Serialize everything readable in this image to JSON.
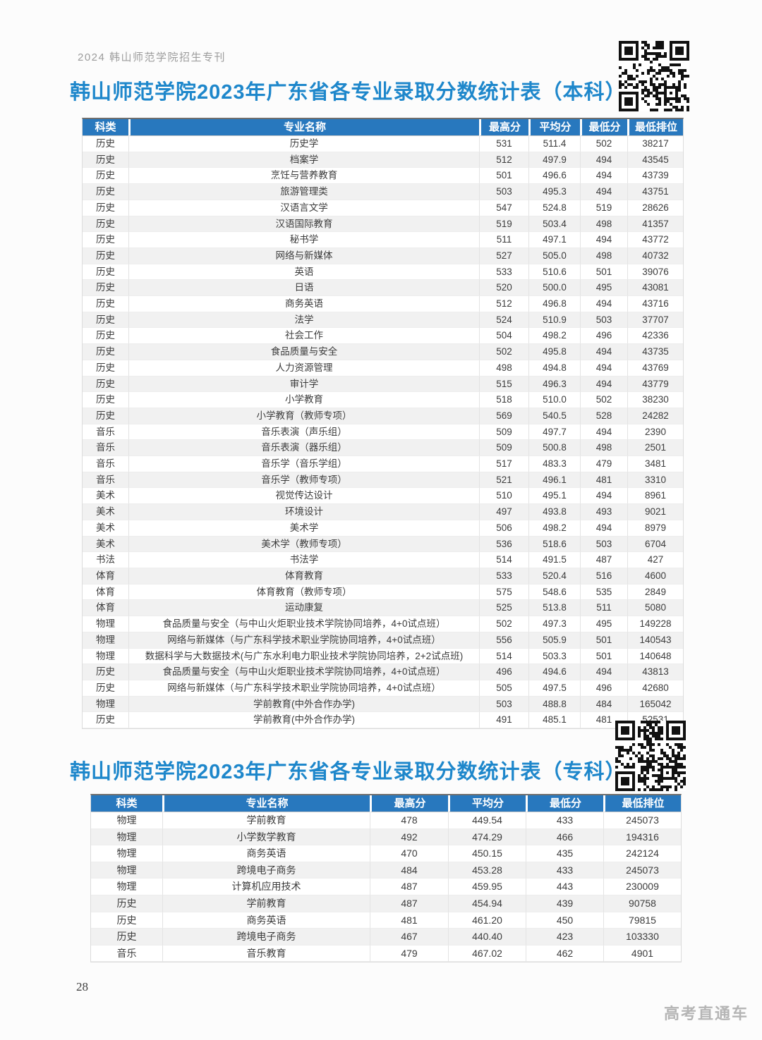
{
  "page": {
    "masthead": "2024 韩山师范学院招生专刊",
    "page_number": "28",
    "watermark": "高考直通车"
  },
  "colors": {
    "title_blue": "#1e87cb",
    "table_header_blue": "#2878be"
  },
  "tables": [
    {
      "title": "韩山师范学院2023年广东省各专业录取分数统计表（本科）",
      "columns": [
        "科类",
        "专业名称",
        "最高分",
        "平均分",
        "最低分",
        "最低排位"
      ],
      "rows": [
        [
          "历史",
          "历史学",
          "531",
          "511.4",
          "502",
          "38217"
        ],
        [
          "历史",
          "档案学",
          "512",
          "497.9",
          "494",
          "43545"
        ],
        [
          "历史",
          "烹饪与营养教育",
          "501",
          "496.6",
          "494",
          "43739"
        ],
        [
          "历史",
          "旅游管理类",
          "503",
          "495.3",
          "494",
          "43751"
        ],
        [
          "历史",
          "汉语言文学",
          "547",
          "524.8",
          "519",
          "28626"
        ],
        [
          "历史",
          "汉语国际教育",
          "519",
          "503.4",
          "498",
          "41357"
        ],
        [
          "历史",
          "秘书学",
          "511",
          "497.1",
          "494",
          "43772"
        ],
        [
          "历史",
          "网络与新媒体",
          "527",
          "505.0",
          "498",
          "40732"
        ],
        [
          "历史",
          "英语",
          "533",
          "510.6",
          "501",
          "39076"
        ],
        [
          "历史",
          "日语",
          "520",
          "500.0",
          "495",
          "43081"
        ],
        [
          "历史",
          "商务英语",
          "512",
          "496.8",
          "494",
          "43716"
        ],
        [
          "历史",
          "法学",
          "524",
          "510.9",
          "503",
          "37707"
        ],
        [
          "历史",
          "社会工作",
          "504",
          "498.2",
          "496",
          "42336"
        ],
        [
          "历史",
          "食品质量与安全",
          "502",
          "495.8",
          "494",
          "43735"
        ],
        [
          "历史",
          "人力资源管理",
          "498",
          "494.8",
          "494",
          "43769"
        ],
        [
          "历史",
          "审计学",
          "515",
          "496.3",
          "494",
          "43779"
        ],
        [
          "历史",
          "小学教育",
          "518",
          "510.0",
          "502",
          "38230"
        ],
        [
          "历史",
          "小学教育（教师专项）",
          "569",
          "540.5",
          "528",
          "24282"
        ],
        [
          "音乐",
          "音乐表演（声乐组）",
          "509",
          "497.7",
          "494",
          "2390"
        ],
        [
          "音乐",
          "音乐表演（器乐组）",
          "509",
          "500.8",
          "498",
          "2501"
        ],
        [
          "音乐",
          "音乐学（音乐学组）",
          "517",
          "483.3",
          "479",
          "3481"
        ],
        [
          "音乐",
          "音乐学（教师专项）",
          "521",
          "496.1",
          "481",
          "3310"
        ],
        [
          "美术",
          "视觉传达设计",
          "510",
          "495.1",
          "494",
          "8961"
        ],
        [
          "美术",
          "环境设计",
          "497",
          "493.8",
          "493",
          "9021"
        ],
        [
          "美术",
          "美术学",
          "506",
          "498.2",
          "494",
          "8979"
        ],
        [
          "美术",
          "美术学（教师专项）",
          "536",
          "518.6",
          "503",
          "6704"
        ],
        [
          "书法",
          "书法学",
          "514",
          "491.5",
          "487",
          "427"
        ],
        [
          "体育",
          "体育教育",
          "533",
          "520.4",
          "516",
          "4600"
        ],
        [
          "体育",
          "体育教育（教师专项）",
          "575",
          "548.6",
          "535",
          "2849"
        ],
        [
          "体育",
          "运动康复",
          "525",
          "513.8",
          "511",
          "5080"
        ],
        [
          "物理",
          "食品质量与安全（与中山火炬职业技术学院协同培养，4+0试点班）",
          "502",
          "497.3",
          "495",
          "149228"
        ],
        [
          "物理",
          "网络与新媒体（与广东科学技术职业学院协同培养，4+0试点班）",
          "556",
          "505.9",
          "501",
          "140543"
        ],
        [
          "物理",
          "数据科学与大数据技术(与广东水利电力职业技术学院协同培养，2+2试点班)",
          "514",
          "503.3",
          "501",
          "140648"
        ],
        [
          "历史",
          "食品质量与安全（与中山火炬职业技术学院协同培养，4+0试点班）",
          "496",
          "494.6",
          "494",
          "43813"
        ],
        [
          "历史",
          "网络与新媒体（与广东科学技术职业学院协同培养，4+0试点班）",
          "505",
          "497.5",
          "496",
          "42680"
        ],
        [
          "物理",
          "学前教育(中外合作办学)",
          "503",
          "488.8",
          "484",
          "165042"
        ],
        [
          "历史",
          "学前教育(中外合作办学)",
          "491",
          "485.1",
          "481",
          "52531"
        ]
      ]
    },
    {
      "title": "韩山师范学院2023年广东省各专业录取分数统计表（专科）",
      "columns": [
        "科类",
        "专业名称",
        "最高分",
        "平均分",
        "最低分",
        "最低排位"
      ],
      "rows": [
        [
          "物理",
          "学前教育",
          "478",
          "449.54",
          "433",
          "245073"
        ],
        [
          "物理",
          "小学数学教育",
          "492",
          "474.29",
          "466",
          "194316"
        ],
        [
          "物理",
          "商务英语",
          "470",
          "450.15",
          "435",
          "242124"
        ],
        [
          "物理",
          "跨境电子商务",
          "484",
          "453.28",
          "433",
          "245073"
        ],
        [
          "物理",
          "计算机应用技术",
          "487",
          "459.95",
          "443",
          "230009"
        ],
        [
          "历史",
          "学前教育",
          "487",
          "454.94",
          "439",
          "90758"
        ],
        [
          "历史",
          "商务英语",
          "481",
          "461.20",
          "450",
          "79815"
        ],
        [
          "历史",
          "跨境电子商务",
          "467",
          "440.40",
          "423",
          "103330"
        ],
        [
          "音乐",
          "音乐教育",
          "479",
          "467.02",
          "462",
          "4901"
        ]
      ]
    }
  ]
}
